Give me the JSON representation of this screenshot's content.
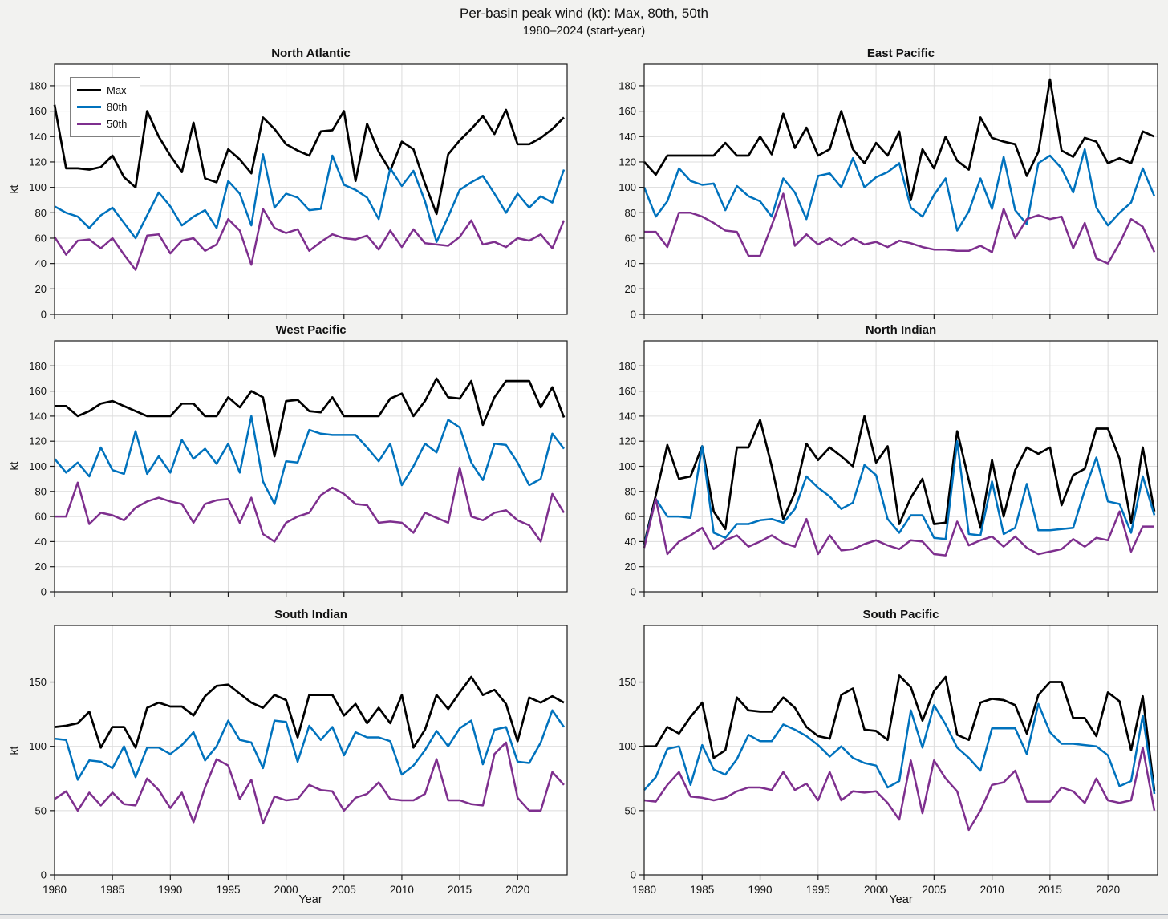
{
  "header": {
    "title": "Per-basin peak wind (kt): Max, 80th, 50th",
    "subtitle": "1980–2024 (start-year)"
  },
  "axis_labels": {
    "y": "kt",
    "x": "Year"
  },
  "legend": {
    "entries": [
      {
        "label": "Max",
        "color": "#000000"
      },
      {
        "label": "80th",
        "color": "#0072BD"
      },
      {
        "label": "50th",
        "color": "#7E2F8E"
      }
    ]
  },
  "chart_data": {
    "type": "line",
    "grid": true,
    "x_label": "Year",
    "y_label": "kt",
    "years": [
      1980,
      1981,
      1982,
      1983,
      1984,
      1985,
      1986,
      1987,
      1988,
      1989,
      1990,
      1991,
      1992,
      1993,
      1994,
      1995,
      1996,
      1997,
      1998,
      1999,
      2000,
      2001,
      2002,
      2003,
      2004,
      2005,
      2006,
      2007,
      2008,
      2009,
      2010,
      2011,
      2012,
      2013,
      2014,
      2015,
      2016,
      2017,
      2018,
      2019,
      2020,
      2021,
      2022,
      2023,
      2024
    ],
    "xticks": [
      1980,
      1985,
      1990,
      1995,
      2000,
      2005,
      2010,
      2015,
      2020
    ],
    "yticks_top_rows": [
      0,
      20,
      40,
      60,
      80,
      100,
      120,
      140,
      160,
      180
    ],
    "yticks_bottom_row": [
      0,
      50,
      100,
      150
    ],
    "series_names": [
      "Max",
      "80th",
      "50th"
    ],
    "series_colors": [
      "#000000",
      "#0072BD",
      "#7E2F8E"
    ],
    "panels": [
      {
        "title": "North Atlantic",
        "max": [
          165,
          115,
          115,
          114,
          116,
          125,
          108,
          100,
          160,
          140,
          125,
          112,
          151,
          107,
          104,
          130,
          122,
          111,
          155,
          146,
          134,
          129,
          125,
          144,
          145,
          160,
          105,
          150,
          128,
          113,
          136,
          130,
          103,
          79,
          126,
          137,
          146,
          156,
          142,
          161,
          134,
          134,
          139,
          146,
          155
        ],
        "p80": [
          85,
          80,
          77,
          68,
          78,
          84,
          72,
          60,
          78,
          96,
          85,
          70,
          77,
          82,
          68,
          105,
          95,
          70,
          126,
          84,
          95,
          92,
          82,
          83,
          125,
          102,
          98,
          92,
          75,
          115,
          101,
          113,
          89,
          57,
          77,
          98,
          104,
          109,
          95,
          80,
          95,
          84,
          93,
          88,
          114
        ],
        "p50": [
          61,
          47,
          58,
          59,
          52,
          60,
          47,
          35,
          62,
          63,
          48,
          58,
          60,
          50,
          55,
          75,
          66,
          39,
          83,
          68,
          64,
          67,
          50,
          57,
          63,
          60,
          59,
          62,
          51,
          66,
          53,
          67,
          56,
          55,
          54,
          61,
          74,
          55,
          57,
          53,
          60,
          58,
          63,
          52,
          74
        ]
      },
      {
        "title": "East Pacific",
        "max": [
          120,
          110,
          125,
          125,
          125,
          125,
          125,
          135,
          125,
          125,
          140,
          126,
          158,
          131,
          147,
          125,
          130,
          160,
          130,
          119,
          135,
          125,
          144,
          90,
          130,
          115,
          140,
          121,
          114,
          155,
          139,
          136,
          134,
          109,
          128,
          185,
          129,
          124,
          139,
          136,
          119,
          123,
          119,
          144,
          140
        ],
        "p80": [
          100,
          77,
          89,
          115,
          105,
          102,
          103,
          82,
          101,
          93,
          89,
          77,
          107,
          96,
          75,
          109,
          111,
          100,
          123,
          100,
          108,
          112,
          119,
          84,
          77,
          94,
          107,
          66,
          81,
          107,
          83,
          124,
          82,
          71,
          119,
          125,
          115,
          96,
          130,
          84,
          70,
          80,
          88,
          115,
          93
        ],
        "p50": [
          65,
          65,
          53,
          80,
          80,
          77,
          72,
          66,
          65,
          46,
          46,
          70,
          95,
          54,
          63,
          55,
          60,
          54,
          60,
          55,
          57,
          53,
          58,
          56,
          53,
          51,
          51,
          50,
          50,
          54,
          49,
          83,
          60,
          75,
          78,
          75,
          77,
          52,
          72,
          44,
          40,
          56,
          75,
          69,
          49
        ]
      },
      {
        "title": "West Pacific",
        "max": [
          148,
          148,
          140,
          144,
          150,
          152,
          148,
          144,
          140,
          140,
          140,
          150,
          150,
          140,
          140,
          155,
          147,
          160,
          155,
          108,
          152,
          153,
          144,
          143,
          155,
          140,
          140,
          140,
          140,
          154,
          158,
          140,
          152,
          170,
          155,
          154,
          168,
          133,
          155,
          168,
          168,
          168,
          147,
          163,
          139
        ],
        "p80": [
          106,
          95,
          103,
          92,
          115,
          97,
          94,
          128,
          94,
          108,
          95,
          121,
          106,
          114,
          102,
          118,
          95,
          140,
          88,
          70,
          104,
          103,
          129,
          126,
          125,
          125,
          125,
          115,
          104,
          118,
          85,
          100,
          118,
          111,
          137,
          131,
          103,
          89,
          118,
          117,
          103,
          85,
          90,
          126,
          114
        ],
        "p50": [
          60,
          60,
          87,
          54,
          63,
          61,
          57,
          67,
          72,
          75,
          72,
          70,
          55,
          70,
          73,
          74,
          55,
          75,
          46,
          40,
          55,
          60,
          63,
          77,
          83,
          78,
          70,
          69,
          55,
          56,
          55,
          47,
          63,
          59,
          55,
          99,
          60,
          57,
          63,
          65,
          57,
          53,
          40,
          78,
          63
        ]
      },
      {
        "title": "North Indian",
        "max": [
          38,
          77,
          117,
          90,
          92,
          116,
          64,
          50,
          115,
          115,
          137,
          100,
          58,
          79,
          118,
          105,
          115,
          108,
          100,
          140,
          103,
          116,
          54,
          75,
          90,
          54,
          55,
          128,
          89,
          51,
          105,
          60,
          97,
          115,
          110,
          115,
          69,
          93,
          98,
          130,
          130,
          106,
          55,
          115,
          64
        ],
        "p80": [
          37,
          74,
          60,
          60,
          59,
          116,
          47,
          43,
          54,
          54,
          57,
          58,
          55,
          66,
          92,
          83,
          76,
          66,
          71,
          101,
          93,
          58,
          47,
          61,
          61,
          43,
          42,
          120,
          46,
          45,
          88,
          46,
          51,
          86,
          49,
          49,
          50,
          51,
          81,
          107,
          72,
          70,
          47,
          92,
          61
        ],
        "p50": [
          35,
          74,
          30,
          40,
          45,
          51,
          34,
          41,
          45,
          36,
          40,
          45,
          39,
          36,
          58,
          30,
          45,
          33,
          34,
          38,
          41,
          37,
          34,
          41,
          40,
          30,
          29,
          56,
          37,
          41,
          44,
          36,
          44,
          35,
          30,
          32,
          34,
          42,
          36,
          43,
          41,
          64,
          32,
          52,
          52
        ]
      },
      {
        "title": "South Indian",
        "max": [
          115,
          116,
          118,
          127,
          99,
          115,
          115,
          99,
          130,
          134,
          131,
          131,
          124,
          139,
          147,
          148,
          141,
          134,
          130,
          140,
          136,
          107,
          140,
          140,
          140,
          124,
          133,
          118,
          130,
          118,
          140,
          99,
          113,
          140,
          129,
          142,
          154,
          140,
          144,
          133,
          104,
          138,
          134,
          139,
          134
        ],
        "p80": [
          106,
          105,
          74,
          89,
          88,
          83,
          100,
          76,
          99,
          99,
          94,
          101,
          111,
          89,
          100,
          120,
          105,
          103,
          83,
          120,
          119,
          88,
          116,
          105,
          115,
          93,
          111,
          107,
          107,
          104,
          78,
          85,
          97,
          112,
          100,
          114,
          120,
          86,
          113,
          115,
          88,
          87,
          103,
          128,
          115
        ],
        "p50": [
          59,
          65,
          50,
          64,
          54,
          64,
          55,
          54,
          75,
          66,
          52,
          64,
          41,
          68,
          90,
          85,
          59,
          74,
          40,
          61,
          58,
          59,
          70,
          66,
          65,
          50,
          60,
          63,
          72,
          59,
          58,
          58,
          63,
          90,
          58,
          58,
          55,
          54,
          94,
          103,
          60,
          50,
          50,
          80,
          70
        ]
      },
      {
        "title": "South Pacific",
        "max": [
          100,
          100,
          115,
          110,
          123,
          134,
          91,
          97,
          138,
          128,
          127,
          127,
          138,
          130,
          115,
          108,
          106,
          140,
          145,
          113,
          112,
          105,
          155,
          146,
          120,
          143,
          154,
          109,
          105,
          134,
          137,
          136,
          132,
          110,
          140,
          150,
          150,
          122,
          122,
          108,
          142,
          135,
          97,
          139,
          65
        ],
        "p80": [
          66,
          76,
          98,
          100,
          70,
          101,
          82,
          78,
          90,
          109,
          104,
          104,
          117,
          113,
          108,
          101,
          92,
          100,
          91,
          87,
          85,
          68,
          73,
          128,
          99,
          132,
          117,
          99,
          91,
          81,
          114,
          114,
          114,
          94,
          133,
          111,
          102,
          102,
          101,
          100,
          93,
          69,
          73,
          124,
          63
        ],
        "p50": [
          58,
          57,
          70,
          80,
          61,
          60,
          58,
          60,
          65,
          68,
          68,
          66,
          80,
          66,
          71,
          58,
          80,
          58,
          65,
          64,
          65,
          56,
          43,
          89,
          48,
          89,
          75,
          65,
          35,
          50,
          70,
          72,
          81,
          57,
          57,
          57,
          68,
          65,
          56,
          75,
          58,
          56,
          58,
          99,
          50
        ]
      }
    ]
  }
}
